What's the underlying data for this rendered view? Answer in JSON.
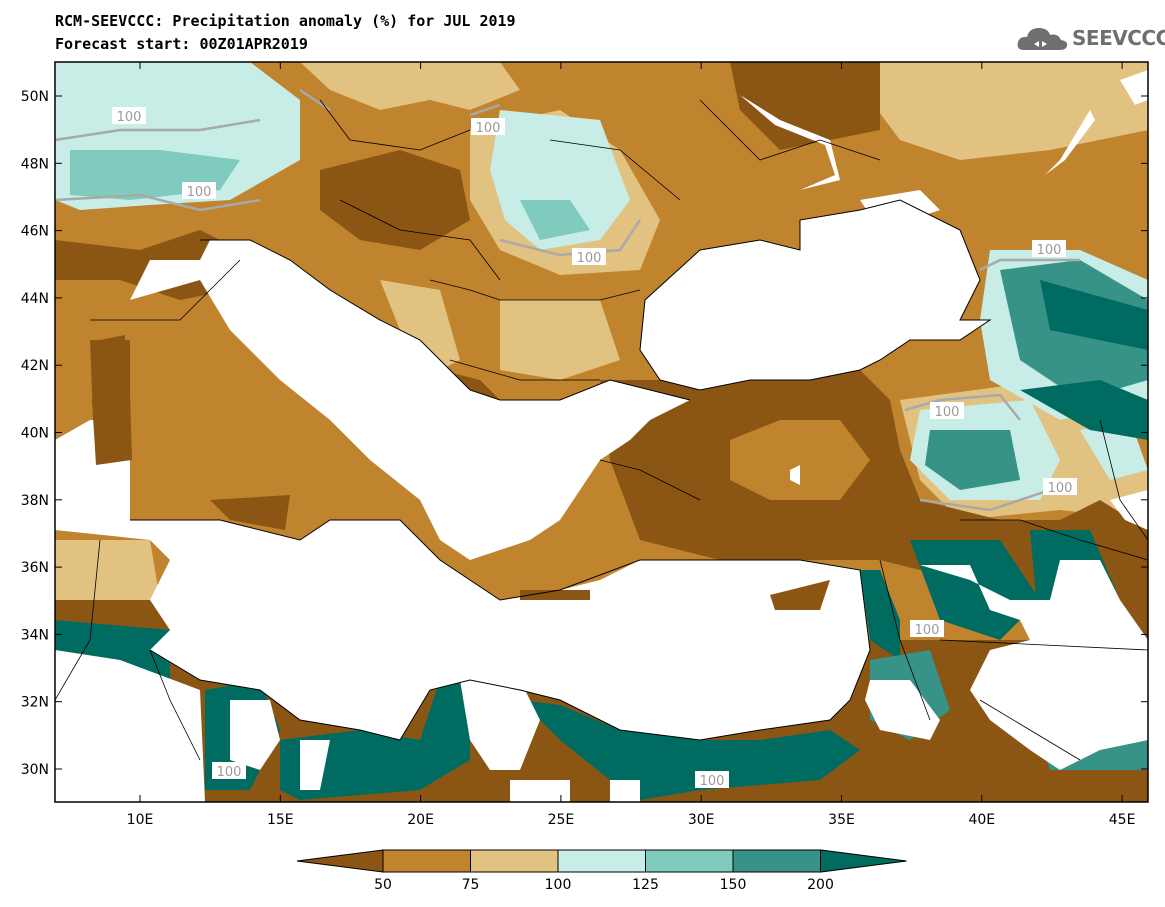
{
  "title_line1": "RCM-SEEVCCC: Precipitation anomaly (%) for JUL 2019",
  "title_line2": "Forecast start: 00Z01APR2019",
  "logo_text": "SEEVCCC",
  "lat_labels": [
    "50N",
    "48N",
    "46N",
    "44N",
    "42N",
    "40N",
    "38N",
    "36N",
    "34N",
    "32N",
    "30N"
  ],
  "lon_labels": [
    "10E",
    "15E",
    "20E",
    "25E",
    "30E",
    "35E",
    "40E",
    "45E"
  ],
  "contour_label": "100",
  "colorbar": {
    "labels": [
      "50",
      "75",
      "100",
      "125",
      "150",
      "200"
    ],
    "colors": [
      "#8b5513",
      "#c0832e",
      "#e2c280",
      "#c8ece6",
      "#7fcbbd",
      "#379287",
      "#006b61"
    ]
  },
  "chart_data": {
    "type": "heatmap",
    "title": "RCM-SEEVCCC: Precipitation anomaly (%) for JUL 2019",
    "subtitle": "Forecast start: 00Z01APR2019",
    "variable": "Precipitation anomaly (%)",
    "lon_range": [
      7,
      46
    ],
    "lat_range": [
      29,
      51
    ],
    "x_ticks": [
      "10E",
      "15E",
      "20E",
      "25E",
      "30E",
      "35E",
      "40E",
      "45E"
    ],
    "y_ticks": [
      "50N",
      "48N",
      "46N",
      "44N",
      "42N",
      "40N",
      "38N",
      "36N",
      "34N",
      "32N",
      "30N"
    ],
    "levels": [
      50,
      75,
      100,
      125,
      150,
      200
    ],
    "contour_labels": [
      "100"
    ]
  }
}
